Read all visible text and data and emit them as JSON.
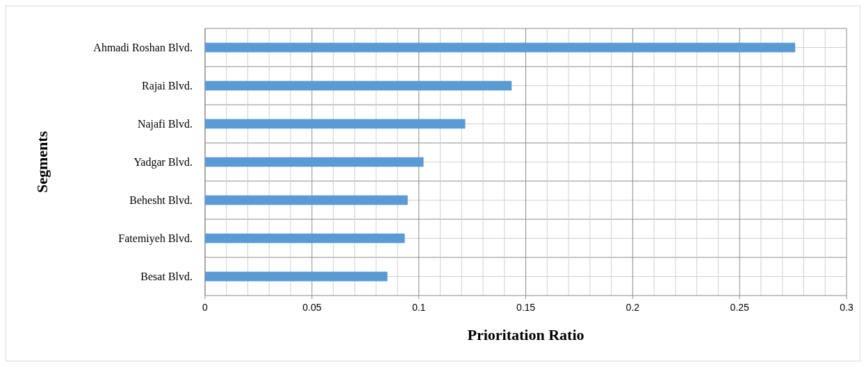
{
  "chart_data": {
    "type": "bar",
    "orientation": "horizontal",
    "xlabel": "Prioritation Ratio",
    "ylabel": "Segments",
    "categories": [
      "Ahmadi Roshan Blvd.",
      "Rajai Blvd.",
      "Najafi Blvd.",
      "Yadgar Blvd.",
      "Behesht Blvd.",
      "Fatemiyeh Blvd.",
      "Besat Blvd."
    ],
    "values": [
      0.276,
      0.1434,
      0.1217,
      0.1022,
      0.0948,
      0.0934,
      0.0853
    ],
    "color": "#5b9bd5",
    "xlim": [
      0,
      0.3
    ],
    "xticks": [
      0,
      {
        "value": 0.01,
        "label": null
      },
      {
        "value": 0.02,
        "label": null
      },
      {
        "value": 0.03,
        "label": null
      },
      {
        "value": 0.04,
        "label": null
      },
      0.05,
      {
        "value": 0.06,
        "label": null
      },
      {
        "value": 0.07,
        "label": null
      },
      {
        "value": 0.08,
        "label": null
      },
      {
        "value": 0.09,
        "label": null
      },
      0.1,
      {
        "value": 0.11,
        "label": null
      },
      {
        "value": 0.12,
        "label": null
      },
      {
        "value": 0.13,
        "label": null
      },
      {
        "value": 0.14,
        "label": null
      },
      0.15,
      {
        "value": 0.16,
        "label": null
      },
      {
        "value": 0.17,
        "label": null
      },
      {
        "value": 0.18,
        "label": null
      },
      {
        "value": 0.19,
        "label": null
      },
      0.2,
      {
        "value": 0.21,
        "label": null
      },
      {
        "value": 0.22,
        "label": null
      },
      {
        "value": 0.23,
        "label": null
      },
      {
        "value": 0.24,
        "label": null
      },
      0.25,
      {
        "value": 0.26,
        "label": null
      },
      {
        "value": 0.27,
        "label": null
      },
      {
        "value": 0.28,
        "label": null
      },
      {
        "value": 0.29,
        "label": null
      },
      0.3
    ],
    "grid": true
  }
}
